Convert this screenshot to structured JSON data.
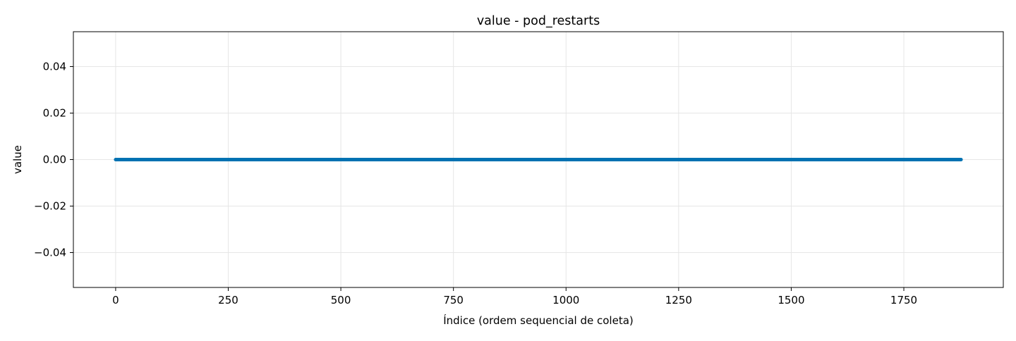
{
  "chart_data": {
    "type": "line",
    "title": "value - pod_restarts",
    "xlabel": "Índice (ordem sequencial de coleta)",
    "ylabel": "value",
    "xlim": [
      -93.85,
      1970.85
    ],
    "ylim": [
      -0.055,
      0.055
    ],
    "x_ticks": [
      0,
      250,
      500,
      750,
      1000,
      1250,
      1500,
      1750
    ],
    "y_ticks": [
      0.04,
      0.02,
      0.0,
      -0.02,
      -0.04
    ],
    "x_tick_labels": [
      "0",
      "250",
      "500",
      "750",
      "1000",
      "1250",
      "1500",
      "1750"
    ],
    "y_tick_labels": [
      "0.04",
      "0.02",
      "0.00",
      "−0.02",
      "−0.04"
    ],
    "grid": true,
    "series": [
      {
        "x_start": 0,
        "x_end": 1877,
        "x_step": 1,
        "constant_y": 0.0
      }
    ],
    "colors": {
      "line": "#0072B2",
      "grid": "#e6e6e6",
      "axes": "#000000"
    }
  }
}
